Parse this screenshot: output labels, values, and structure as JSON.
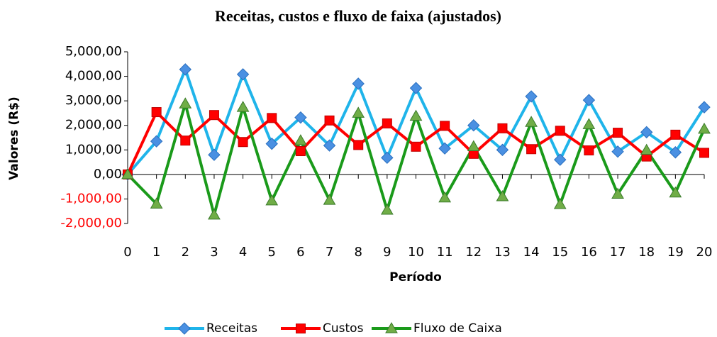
{
  "chart_data": {
    "type": "line",
    "title": "Receitas, custos e fluxo de faixa (ajustados)",
    "x_label": "Período",
    "y_label": "Valores (R$)",
    "x": [
      0,
      1,
      2,
      3,
      4,
      5,
      6,
      7,
      8,
      9,
      10,
      11,
      12,
      13,
      14,
      15,
      16,
      17,
      18,
      19,
      20
    ],
    "xlim": [
      0,
      20
    ],
    "xticks": [
      0,
      1,
      2,
      3,
      4,
      5,
      6,
      7,
      8,
      9,
      10,
      11,
      12,
      13,
      14,
      15,
      16,
      17,
      18,
      19,
      20
    ],
    "ylim": [
      -2000,
      5000
    ],
    "yticks": [
      {
        "value": -2000,
        "label": "-2,000,00"
      },
      {
        "value": -1000,
        "label": "-1,000,00"
      },
      {
        "value": 0,
        "label": "0,00"
      },
      {
        "value": 1000,
        "label": "1,000,00"
      },
      {
        "value": 2000,
        "label": "2,000,00"
      },
      {
        "value": 3000,
        "label": "3,000,00"
      },
      {
        "value": 4000,
        "label": "4,000,00"
      },
      {
        "value": 5000,
        "label": "5,000,00"
      }
    ],
    "negative_tick_color": "#ff0000",
    "legend": "bottom",
    "series": [
      {
        "name": "Receitas",
        "color": "#1fb4ea",
        "marker": "diamond",
        "marker_color": "#4a90e2",
        "values": [
          0,
          1350,
          4280,
          800,
          4080,
          1250,
          2320,
          1180,
          3700,
          680,
          3520,
          1060,
          2000,
          1000,
          3180,
          600,
          3030,
          930,
          1720,
          900,
          2740
        ]
      },
      {
        "name": "Custos",
        "color": "#ff0000",
        "marker": "square",
        "marker_color": "#ff0000",
        "values": [
          0,
          2540,
          1380,
          2420,
          1320,
          2300,
          950,
          2200,
          1200,
          2080,
          1130,
          1980,
          840,
          1880,
          1030,
          1780,
          980,
          1700,
          730,
          1620,
          880
        ]
      },
      {
        "name": "Fluxo de Caixa",
        "color": "#1a9a1a",
        "marker": "triangle",
        "marker_color": "#70ad47",
        "values": [
          0,
          -1200,
          2880,
          -1650,
          2740,
          -1070,
          1380,
          -1050,
          2500,
          -1450,
          2380,
          -950,
          1140,
          -900,
          2130,
          -1220,
          2040,
          -800,
          990,
          -750,
          1850
        ]
      }
    ]
  }
}
